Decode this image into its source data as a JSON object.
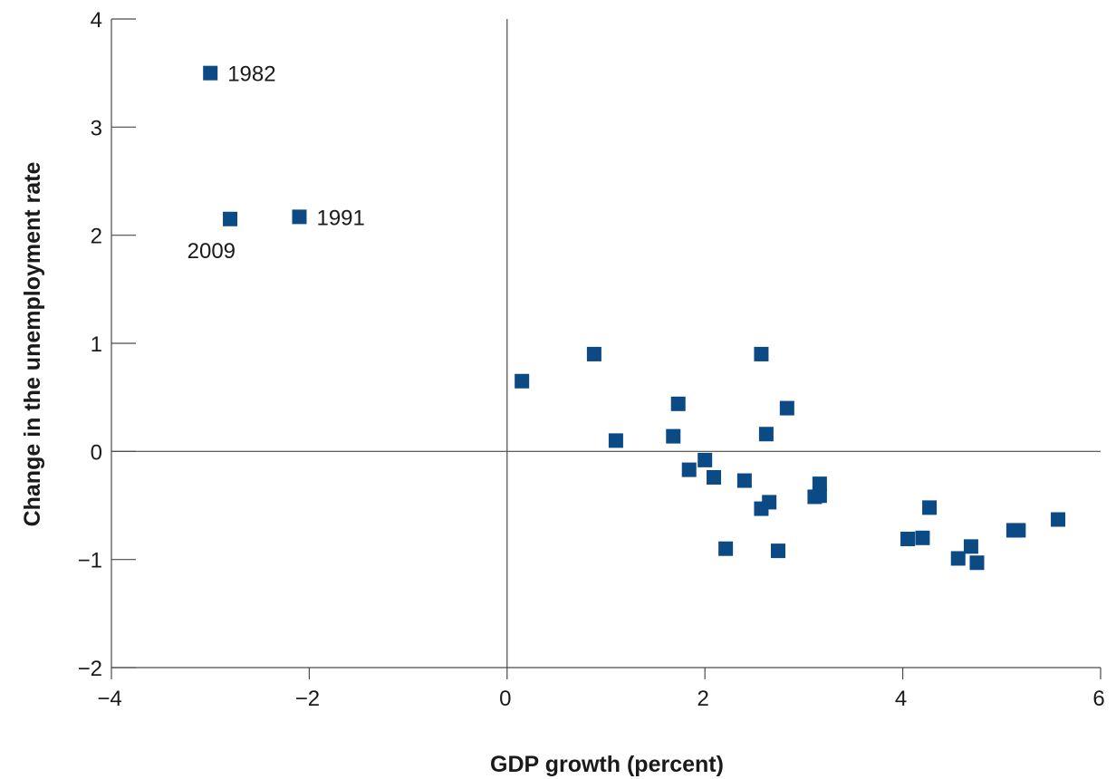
{
  "chart_data": {
    "type": "scatter",
    "title": "",
    "xlabel": "GDP growth (percent)",
    "ylabel": "Change in the unemployment rate",
    "xlim": [
      -4,
      6
    ],
    "ylim": [
      -2,
      4
    ],
    "x_ticks": [
      -4,
      -2,
      0,
      2,
      4,
      6
    ],
    "y_ticks": [
      -2,
      -1,
      0,
      1,
      2,
      3,
      4
    ],
    "x_tick_labels": [
      "−4",
      "−2",
      "0",
      "2",
      "4",
      "6"
    ],
    "y_tick_labels": [
      "−2",
      "−1",
      "0",
      "1",
      "2",
      "3",
      "4"
    ],
    "grid": false,
    "zero_lines": true,
    "marker": "square",
    "color": "#0b4a85",
    "points": [
      {
        "x": -3.0,
        "y": 3.5,
        "label": "1982",
        "label_side": "right"
      },
      {
        "x": -2.1,
        "y": 2.17,
        "label": "1991",
        "label_side": "right"
      },
      {
        "x": -2.8,
        "y": 2.15,
        "label": "2009",
        "label_side": "below-left"
      },
      {
        "x": 0.15,
        "y": 0.65
      },
      {
        "x": 0.88,
        "y": 0.9
      },
      {
        "x": 1.1,
        "y": 0.1
      },
      {
        "x": 1.68,
        "y": 0.14
      },
      {
        "x": 1.73,
        "y": 0.44
      },
      {
        "x": 1.84,
        "y": -0.17
      },
      {
        "x": 2.0,
        "y": -0.08
      },
      {
        "x": 2.09,
        "y": -0.24
      },
      {
        "x": 2.21,
        "y": -0.9
      },
      {
        "x": 2.4,
        "y": -0.27
      },
      {
        "x": 2.57,
        "y": 0.9
      },
      {
        "x": 2.57,
        "y": -0.53
      },
      {
        "x": 2.62,
        "y": 0.16
      },
      {
        "x": 2.65,
        "y": -0.47
      },
      {
        "x": 2.74,
        "y": -0.92
      },
      {
        "x": 2.83,
        "y": 0.4
      },
      {
        "x": 3.11,
        "y": -0.42
      },
      {
        "x": 3.16,
        "y": -0.3
      },
      {
        "x": 3.16,
        "y": -0.41
      },
      {
        "x": 4.05,
        "y": -0.81
      },
      {
        "x": 4.2,
        "y": -0.8
      },
      {
        "x": 4.27,
        "y": -0.52
      },
      {
        "x": 4.56,
        "y": -0.99
      },
      {
        "x": 4.69,
        "y": -0.88
      },
      {
        "x": 4.75,
        "y": -1.03
      },
      {
        "x": 5.12,
        "y": -0.73
      },
      {
        "x": 5.17,
        "y": -0.73
      },
      {
        "x": 5.57,
        "y": -0.63
      }
    ]
  }
}
